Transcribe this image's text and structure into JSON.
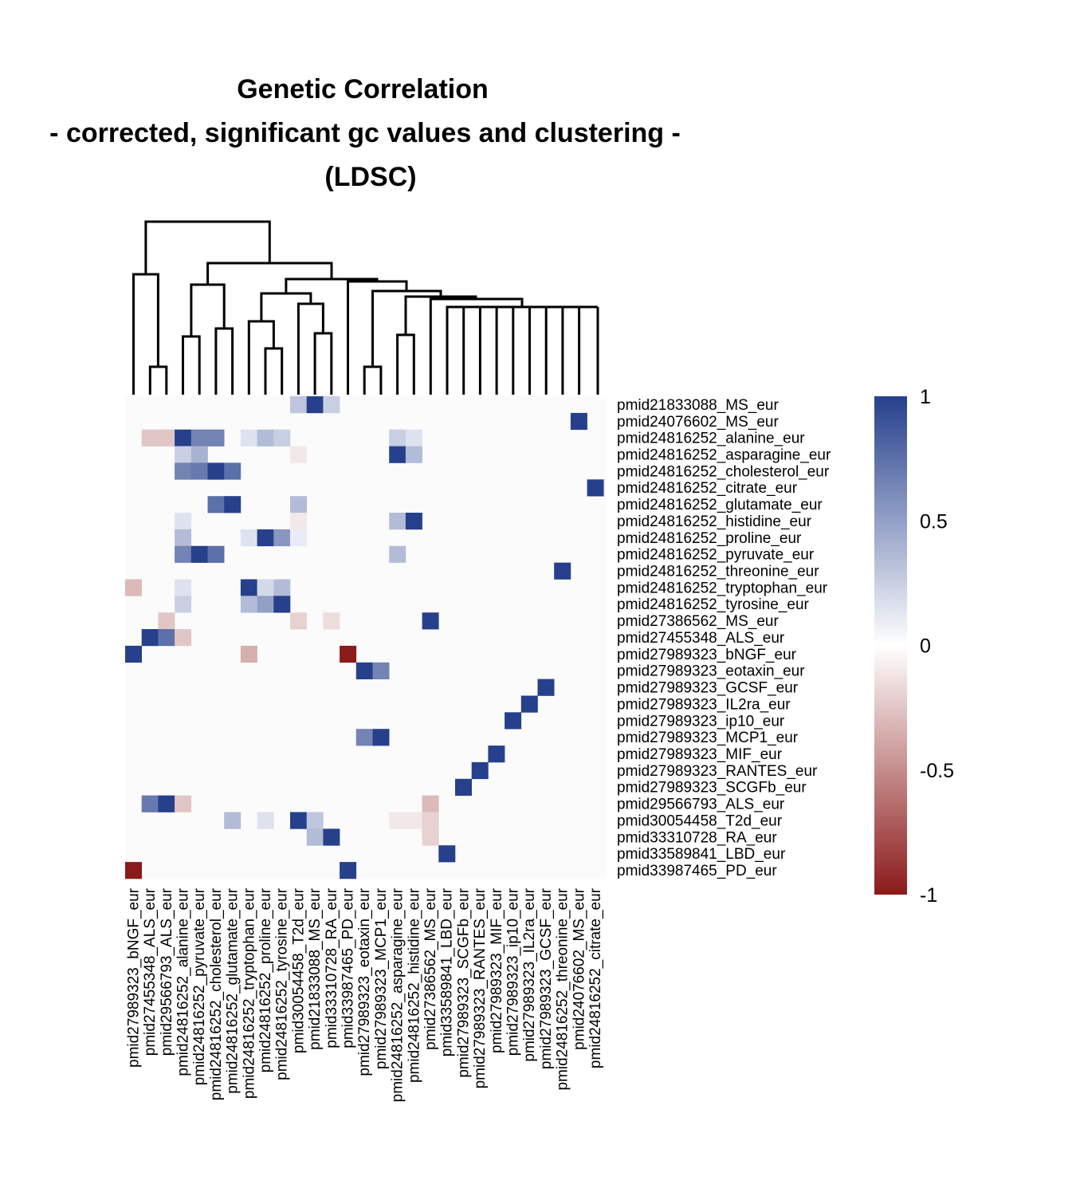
{
  "chart_data": {
    "type": "heatmap",
    "title": [
      "Genetic Correlation",
      "- corrected, significant gc values and clustering -",
      "(LDSC)"
    ],
    "colors": {
      "high": "#26408c",
      "mid": "#ffffff",
      "low": "#8b1a1a",
      "empty": "#fbfbfb"
    },
    "color_range": [
      -1,
      1
    ],
    "legend_ticks": [
      "1",
      "0.5",
      "0",
      "-0.5",
      "-1"
    ],
    "legend_tick_values": [
      1,
      0.5,
      0,
      -0.5,
      -1
    ],
    "rows": [
      "pmid21833088_MS_eur",
      "pmid24076602_MS_eur",
      "pmid24816252_alanine_eur",
      "pmid24816252_asparagine_eur",
      "pmid24816252_cholesterol_eur",
      "pmid24816252_citrate_eur",
      "pmid24816252_glutamate_eur",
      "pmid24816252_histidine_eur",
      "pmid24816252_proline_eur",
      "pmid24816252_pyruvate_eur",
      "pmid24816252_threonine_eur",
      "pmid24816252_tryptophan_eur",
      "pmid24816252_tyrosine_eur",
      "pmid27386562_MS_eur",
      "pmid27455348_ALS_eur",
      "pmid27989323_bNGF_eur",
      "pmid27989323_eotaxin_eur",
      "pmid27989323_GCSF_eur",
      "pmid27989323_IL2ra_eur",
      "pmid27989323_ip10_eur",
      "pmid27989323_MCP1_eur",
      "pmid27989323_MIF_eur",
      "pmid27989323_RANTES_eur",
      "pmid27989323_SCGFb_eur",
      "pmid29566793_ALS_eur",
      "pmid30054458_T2d_eur",
      "pmid33310728_RA_eur",
      "pmid33589841_LBD_eur",
      "pmid33987465_PD_eur"
    ],
    "columns": [
      "pmid27989323_bNGF_eur",
      "pmid27455348_ALS_eur",
      "pmid29566793_ALS_eur",
      "pmid24816252_alanine_eur",
      "pmid24816252_pyruvate_eur",
      "pmid24816252_cholesterol_eur",
      "pmid24816252_glutamate_eur",
      "pmid24816252_tryptophan_eur",
      "pmid24816252_proline_eur",
      "pmid24816252_tyrosine_eur",
      "pmid30054458_T2d_eur",
      "pmid21833088_MS_eur",
      "pmid33310728_RA_eur",
      "pmid33987465_PD_eur",
      "pmid27989323_eotaxin_eur",
      "pmid27989323_MCP1_eur",
      "pmid24816252_asparagine_eur",
      "pmid24816252_histidine_eur",
      "pmid27386562_MS_eur",
      "pmid33589841_LBD_eur",
      "pmid27989323_SCGFb_eur",
      "pmid27989323_RANTES_eur",
      "pmid27989323_MIF_eur",
      "pmid27989323_ip10_eur",
      "pmid27989323_IL2ra_eur",
      "pmid27989323_GCSF_eur",
      "pmid24816252_threonine_eur",
      "pmid24076602_MS_eur",
      "pmid24816252_citrate_eur"
    ],
    "cells": [
      [
        0,
        10,
        0.3
      ],
      [
        0,
        11,
        1
      ],
      [
        0,
        12,
        0.25
      ],
      [
        1,
        27,
        1
      ],
      [
        2,
        1,
        -0.25
      ],
      [
        2,
        2,
        -0.25
      ],
      [
        2,
        3,
        1
      ],
      [
        2,
        4,
        0.65
      ],
      [
        2,
        5,
        0.65
      ],
      [
        2,
        7,
        0.15
      ],
      [
        2,
        8,
        0.35
      ],
      [
        2,
        9,
        0.25
      ],
      [
        2,
        16,
        0.25
      ],
      [
        2,
        17,
        0.15
      ],
      [
        3,
        3,
        0.25
      ],
      [
        3,
        4,
        0.4
      ],
      [
        3,
        10,
        -0.1
      ],
      [
        3,
        16,
        1
      ],
      [
        3,
        17,
        0.35
      ],
      [
        4,
        3,
        0.65
      ],
      [
        4,
        4,
        0.7
      ],
      [
        4,
        5,
        1
      ],
      [
        4,
        6,
        0.75
      ],
      [
        5,
        28,
        1
      ],
      [
        6,
        5,
        0.75
      ],
      [
        6,
        6,
        1
      ],
      [
        6,
        10,
        0.35
      ],
      [
        7,
        3,
        0.15
      ],
      [
        7,
        10,
        -0.1
      ],
      [
        7,
        16,
        0.35
      ],
      [
        7,
        17,
        1
      ],
      [
        8,
        3,
        0.35
      ],
      [
        8,
        7,
        0.15
      ],
      [
        8,
        8,
        1
      ],
      [
        8,
        9,
        0.55
      ],
      [
        8,
        10,
        0.1
      ],
      [
        9,
        3,
        0.65
      ],
      [
        9,
        4,
        1
      ],
      [
        9,
        5,
        0.75
      ],
      [
        9,
        16,
        0.35
      ],
      [
        10,
        26,
        1
      ],
      [
        11,
        0,
        -0.3
      ],
      [
        11,
        3,
        0.15
      ],
      [
        11,
        7,
        1
      ],
      [
        11,
        8,
        0.2
      ],
      [
        11,
        9,
        0.35
      ],
      [
        12,
        3,
        0.25
      ],
      [
        12,
        7,
        0.35
      ],
      [
        12,
        8,
        0.5
      ],
      [
        12,
        9,
        1
      ],
      [
        13,
        2,
        -0.25
      ],
      [
        13,
        10,
        -0.2
      ],
      [
        13,
        12,
        -0.15
      ],
      [
        13,
        18,
        1
      ],
      [
        14,
        1,
        1
      ],
      [
        14,
        2,
        0.75
      ],
      [
        14,
        3,
        -0.25
      ],
      [
        15,
        0,
        1
      ],
      [
        15,
        7,
        -0.35
      ],
      [
        15,
        13,
        -1
      ],
      [
        16,
        14,
        1
      ],
      [
        16,
        15,
        0.65
      ],
      [
        17,
        25,
        1
      ],
      [
        18,
        24,
        1
      ],
      [
        19,
        23,
        1
      ],
      [
        20,
        14,
        0.65
      ],
      [
        20,
        15,
        1
      ],
      [
        21,
        22,
        1
      ],
      [
        22,
        21,
        1
      ],
      [
        23,
        20,
        1
      ],
      [
        24,
        1,
        0.7
      ],
      [
        24,
        2,
        1
      ],
      [
        24,
        3,
        -0.25
      ],
      [
        24,
        18,
        -0.3
      ],
      [
        25,
        6,
        0.35
      ],
      [
        25,
        8,
        0.15
      ],
      [
        25,
        10,
        1
      ],
      [
        25,
        11,
        0.3
      ],
      [
        25,
        16,
        -0.1
      ],
      [
        25,
        17,
        -0.1
      ],
      [
        25,
        18,
        -0.2
      ],
      [
        26,
        11,
        0.35
      ],
      [
        26,
        12,
        1
      ],
      [
        26,
        18,
        -0.2
      ],
      [
        27,
        19,
        1
      ],
      [
        28,
        0,
        -1
      ],
      [
        28,
        13,
        1
      ]
    ]
  }
}
